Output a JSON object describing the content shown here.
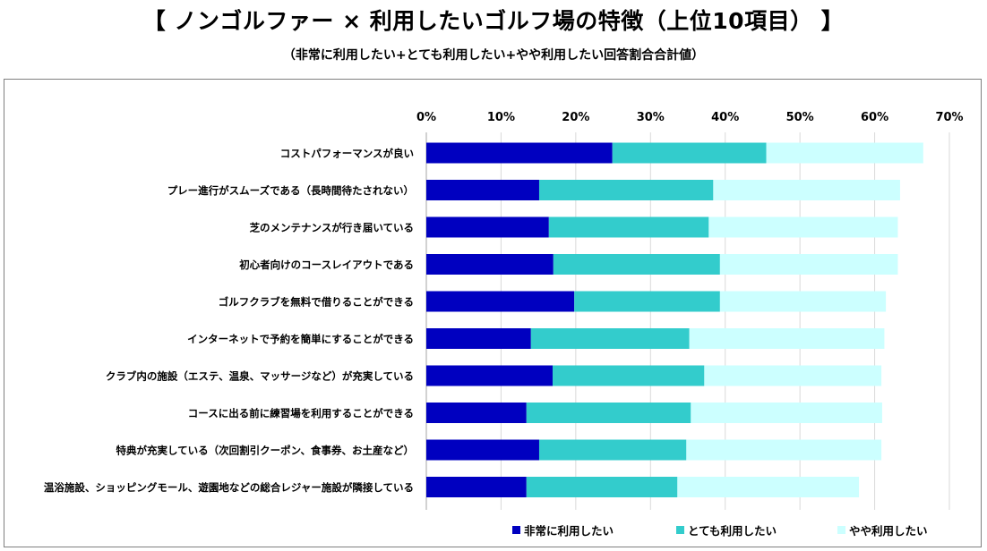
{
  "header": {
    "title": "【 ノンゴルファー × 利用したいゴルフ場の特徴（上位10項目） 】",
    "subtitle": "（非常に利用したい+とても利用したい+やや利用したい回答割合合計値）"
  },
  "colors": {
    "series": [
      "#0000c0",
      "#33cccc",
      "#ccffff"
    ],
    "gridline": "#d9d9d9",
    "frame": "#7f7f7f"
  },
  "chart_data": {
    "type": "bar",
    "orientation": "horizontal",
    "stacked": true,
    "xlim": [
      0,
      70
    ],
    "x_ticks": [
      "0%",
      "10%",
      "20%",
      "30%",
      "40%",
      "50%",
      "60%",
      "70%"
    ],
    "x_tick_values": [
      0,
      10,
      20,
      30,
      40,
      50,
      60,
      70
    ],
    "grid": true,
    "legend_position": "bottom",
    "categories": [
      "コストパフォーマンスが良い",
      "プレー進行がスムーズである（長時間待たされない）",
      "芝のメンテナンスが行き届いている",
      "初心者向けのコースレイアウトである",
      "ゴルフクラブを無料で借りることができる",
      "インターネットで予約を簡単にすることができる",
      "クラブ内の施設（エステ、温泉、マッサージなど）が充実している",
      "コースに出る前に練習場を利用することができる",
      "特典が充実している（次回割引クーポン、食事券、お土産など）",
      "温浴施設、ショッピングモール、遊園地などの総合レジャー施設が隣接している"
    ],
    "series": [
      {
        "name": "非常に利用したい",
        "values": [
          24.9,
          15.1,
          16.4,
          17.0,
          19.8,
          14.0,
          16.9,
          13.4,
          15.1,
          13.4
        ]
      },
      {
        "name": "とても利用したい",
        "values": [
          20.6,
          23.3,
          21.4,
          22.3,
          19.5,
          21.2,
          20.3,
          22.0,
          19.7,
          20.2
        ]
      },
      {
        "name": "やや利用したい",
        "values": [
          21.0,
          25.0,
          25.3,
          23.8,
          22.2,
          26.1,
          23.7,
          25.6,
          26.1,
          24.3
        ]
      }
    ]
  }
}
